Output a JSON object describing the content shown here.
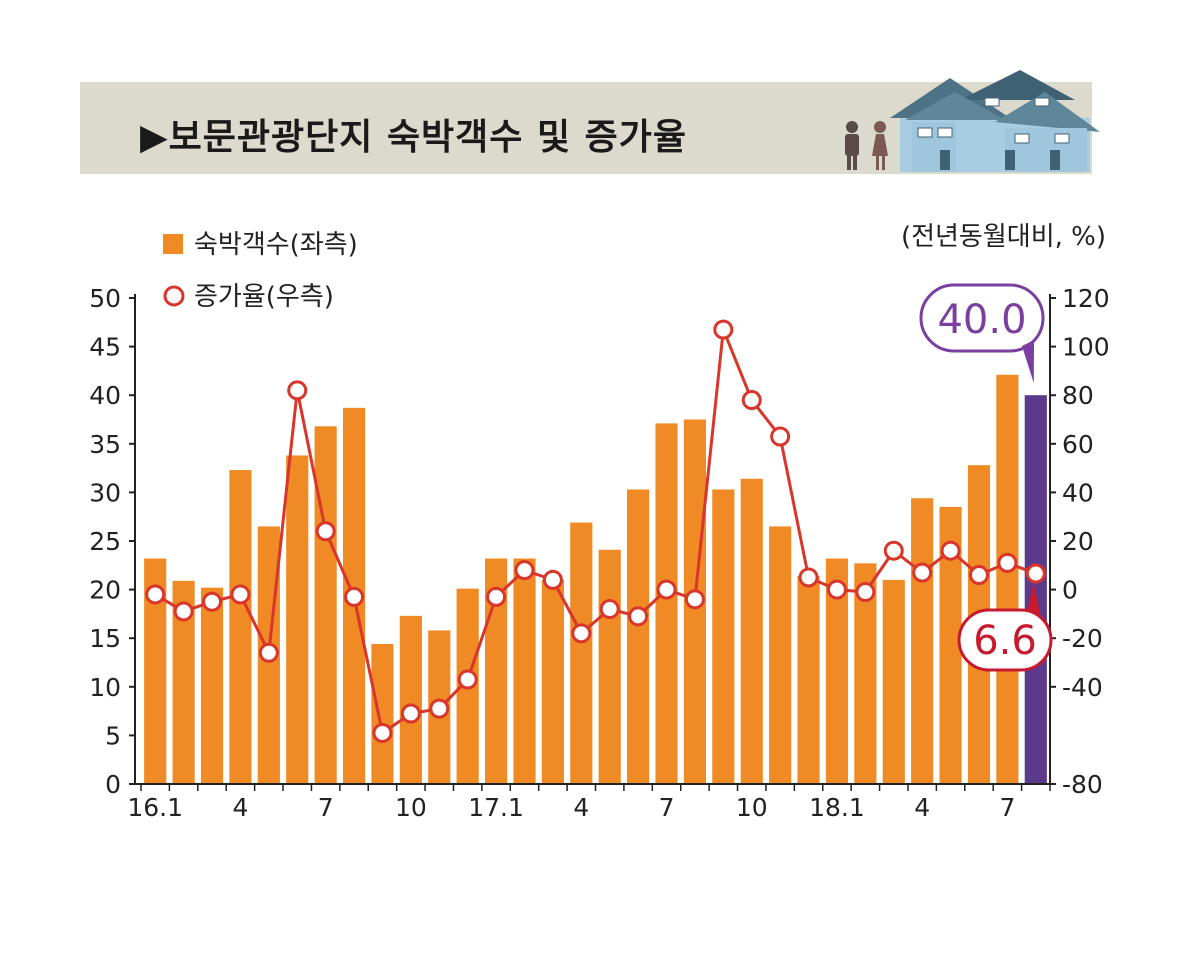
{
  "title": "▶보문관광단지 숙박객수 및 증가율",
  "colors": {
    "bar": "#ef8a24",
    "bar_highlight": "#5b3a8c",
    "line": "#d9362b",
    "title_bg": "#dcdacd",
    "callout_purple": "#7b3fa0",
    "callout_red": "#c8192d"
  },
  "chart_data": {
    "type": "bar+line",
    "unit_note": "(전년동월대비, %)",
    "categories": [
      "16.1",
      "16.2",
      "16.3",
      "16.4",
      "16.5",
      "16.6",
      "16.7",
      "16.8",
      "16.9",
      "16.10",
      "16.11",
      "16.12",
      "17.1",
      "17.2",
      "17.3",
      "17.4",
      "17.5",
      "17.6",
      "17.7",
      "17.8",
      "17.9",
      "17.10",
      "17.11",
      "17.12",
      "18.1",
      "18.2",
      "18.3",
      "18.4",
      "18.5",
      "18.6",
      "18.7",
      "18.8"
    ],
    "x_tick_labels": [
      {
        "index": 0,
        "label": "16.1"
      },
      {
        "index": 3,
        "label": "4"
      },
      {
        "index": 6,
        "label": "7"
      },
      {
        "index": 9,
        "label": "10"
      },
      {
        "index": 12,
        "label": "17.1"
      },
      {
        "index": 15,
        "label": "4"
      },
      {
        "index": 18,
        "label": "7"
      },
      {
        "index": 21,
        "label": "10"
      },
      {
        "index": 24,
        "label": "18.1"
      },
      {
        "index": 27,
        "label": "4"
      },
      {
        "index": 30,
        "label": "7"
      }
    ],
    "series": [
      {
        "name": "숙박객수(좌측)",
        "type": "bar",
        "axis": "left",
        "values": [
          23.2,
          20.9,
          20.2,
          32.3,
          26.5,
          33.8,
          36.8,
          38.7,
          14.4,
          17.3,
          15.8,
          20.1,
          23.2,
          23.2,
          21.0,
          26.9,
          24.1,
          30.3,
          37.1,
          37.5,
          30.3,
          31.4,
          26.5,
          21.4,
          23.2,
          22.7,
          21.0,
          29.4,
          28.5,
          32.8,
          42.1,
          40.0
        ],
        "highlight_index": 31
      },
      {
        "name": "증가율(우측)",
        "type": "line",
        "axis": "right",
        "values": [
          -2,
          -9,
          -5,
          -2,
          -26,
          82,
          24,
          -3,
          -59,
          -51,
          -49,
          -37,
          -3,
          8,
          4,
          -18,
          -8,
          -11,
          0,
          -4,
          107,
          78,
          63,
          5,
          0,
          -1,
          16,
          7,
          16,
          6,
          11,
          6.6
        ]
      }
    ],
    "left_axis": {
      "range": [
        0,
        50
      ],
      "ticks": [
        "0",
        "5",
        "10",
        "15",
        "20",
        "25",
        "30",
        "35",
        "40",
        "45",
        "50"
      ]
    },
    "right_axis": {
      "range": [
        -80,
        120
      ],
      "ticks": [
        "-80",
        "-40",
        "-20",
        "0",
        "20",
        "40",
        "60",
        "80",
        "100",
        "120"
      ],
      "tick_values": [
        -80,
        -40,
        -20,
        0,
        20,
        40,
        60,
        80,
        100,
        120
      ]
    },
    "callouts": [
      {
        "text": "40.0",
        "series": 0,
        "index": 31,
        "style": "purple"
      },
      {
        "text": "6.6",
        "series": 1,
        "index": 31,
        "style": "red"
      }
    ]
  }
}
